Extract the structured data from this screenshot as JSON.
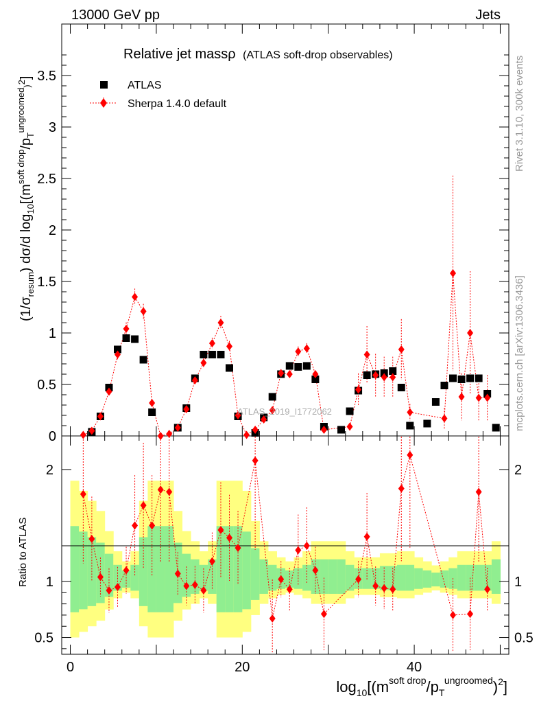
{
  "header": {
    "left": "13000 GeV pp",
    "right": "Jets"
  },
  "side": {
    "rivet": "Rivet 3.1.10,  300k events",
    "mcplots": "mcplots.cern.ch [arXiv:1306.3436]"
  },
  "watermark": "ATLAS_2019_I1772062",
  "colors": {
    "mc": "#ff0000",
    "data": "#000000",
    "band1": "#90ee90",
    "band2": "#ffff80"
  },
  "chart_data": [
    {
      "type": "scatter",
      "panel": "main",
      "title": "Relative jet massρ",
      "subtitle": "(ATLAS soft-drop observables)",
      "ylabel": "(1/σresum) dσ/d log10[(m soft drop/pT ungroomed)2]",
      "xlim": [
        -1,
        51
      ],
      "ylim": [
        0,
        4
      ],
      "yticks": [
        0,
        0.5,
        1,
        1.5,
        2,
        2.5,
        3,
        3.5
      ],
      "ytick_labels": [
        "0",
        "0.5",
        "1",
        "1.5",
        "2",
        "2.5",
        "3",
        "3.5"
      ],
      "legend": [
        "ATLAS",
        "Sherpa 1.4.0 default"
      ],
      "legend_position": "top-left",
      "series": [
        {
          "name": "ATLAS",
          "x": [
            0.5,
            1.5,
            2.5,
            3.5,
            4.5,
            5.5,
            6.5,
            7.5,
            8.5,
            9.5,
            10.5,
            11.5,
            12.5,
            13.5,
            14.5,
            15.5,
            16.5,
            17.5,
            18.5,
            19.5,
            20.5,
            21.5,
            22.5,
            23.5,
            24.5,
            25.5,
            26.5,
            27.5,
            28.5,
            29.5,
            30.5,
            31.5,
            32.5,
            33.5,
            34.5,
            35.5,
            36.5,
            37.5,
            38.5,
            39.5,
            40.5,
            41.5,
            42.5,
            43.5,
            44.5,
            45.5,
            46.5,
            47.5,
            48.5,
            49.5
          ],
          "y": [
            0.0,
            0.01,
            0.04,
            0.19,
            0.47,
            0.84,
            0.95,
            0.94,
            0.74,
            0.23,
            0.0,
            0.01,
            0.08,
            0.27,
            0.56,
            0.79,
            0.79,
            0.79,
            0.66,
            0.19,
            0.02,
            0.03,
            0.18,
            0.38,
            0.6,
            0.68,
            0.67,
            0.68,
            0.55,
            0.09,
            0.02,
            0.06,
            0.24,
            0.44,
            0.59,
            0.6,
            0.61,
            0.63,
            0.47,
            0.1,
            0.02,
            0.12,
            0.33,
            0.49,
            0.56,
            0.55,
            0.56,
            0.56,
            0.41,
            0.08
          ]
        },
        {
          "name": "Sherpa 1.4.0 default",
          "x": [
            1.5,
            2.5,
            3.5,
            4.5,
            5.5,
            6.5,
            7.5,
            8.5,
            9.5,
            10.5,
            11.5,
            12.5,
            13.5,
            14.5,
            15.5,
            16.5,
            17.5,
            18.5,
            19.5,
            20.5,
            21.5,
            22.5,
            23.5,
            24.5,
            25.5,
            26.5,
            27.5,
            28.5,
            29.5,
            32.5,
            33.5,
            34.5,
            35.5,
            36.5,
            37.5,
            38.5,
            39.5,
            43.5,
            44.5,
            45.5,
            46.5,
            47.5,
            48.5
          ],
          "y": [
            0.01,
            0.05,
            0.19,
            0.43,
            0.79,
            1.04,
            1.35,
            1.21,
            0.32,
            0.0,
            0.02,
            0.08,
            0.26,
            0.54,
            0.71,
            0.9,
            1.1,
            0.87,
            0.2,
            0.01,
            0.06,
            0.16,
            0.25,
            0.61,
            0.6,
            0.82,
            0.85,
            0.6,
            0.06,
            0.09,
            0.45,
            0.79,
            0.59,
            0.57,
            0.57,
            0.84,
            0.23,
            0.17,
            1.58,
            0.38,
            1.0,
            0.37,
            0.37
          ]
        }
      ]
    },
    {
      "type": "scatter",
      "panel": "ratio",
      "ylabel": "Ratio to ATLAS",
      "xlabel": "log10[(m soft drop/pT ungroomed)2]",
      "ylim": [
        0.35,
        2.3
      ],
      "yticks": [
        0.5,
        1,
        2
      ],
      "ytick_labels": [
        "0.5",
        "1",
        "2"
      ],
      "xticks": [
        0,
        20,
        40
      ],
      "xtick_labels": [
        "0",
        "20",
        "40"
      ],
      "ratio": {
        "x": [
          1.5,
          2.5,
          3.5,
          4.5,
          5.5,
          6.5,
          7.5,
          8.5,
          9.5,
          10.5,
          11.5,
          12.5,
          13.5,
          14.5,
          15.5,
          16.5,
          17.5,
          18.5,
          19.5,
          21.5,
          23.5,
          24.5,
          25.5,
          26.5,
          27.5,
          28.5,
          29.5,
          33.5,
          34.5,
          35.5,
          36.5,
          37.5,
          38.5,
          39.5,
          44.5,
          46.5,
          47.5,
          48.5
        ],
        "y": [
          1.78,
          1.38,
          1.04,
          0.92,
          0.95,
          1.1,
          1.5,
          1.68,
          1.5,
          1.82,
          1.8,
          1.07,
          0.96,
          0.97,
          0.92,
          1.18,
          1.46,
          1.39,
          1.3,
          2.08,
          0.67,
          1.02,
          0.93,
          1.28,
          1.32,
          1.1,
          0.71,
          1.02,
          1.4,
          0.96,
          0.94,
          0.93,
          1.83,
          2.13,
          0.7,
          0.71,
          1.8,
          0.93
        ]
      }
    }
  ]
}
